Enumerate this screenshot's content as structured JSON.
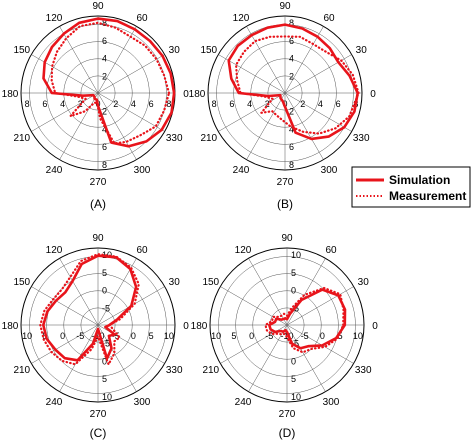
{
  "legend": {
    "simulation": "Simulation",
    "measurement": "Measurement"
  },
  "colors": {
    "series": "#e8141b",
    "grid": "#555555"
  },
  "chart_data": [
    {
      "type": "polar",
      "panel_label": "(A)",
      "angle_labels": [
        "0",
        "30",
        "60",
        "90",
        "120",
        "150",
        "180",
        "210",
        "240",
        "270",
        "300",
        "330"
      ],
      "radial_ticks": [
        "8",
        "6",
        "4",
        "2",
        "0",
        "2",
        "4",
        "6",
        "8"
      ],
      "radial_ticks_vertical": [
        "8",
        "6",
        "4",
        "2",
        "2",
        "4",
        "6",
        "8"
      ],
      "rlim": [
        0,
        9
      ],
      "grid": true,
      "series": [
        {
          "name": "Simulation",
          "style": "solid",
          "points": [
            [
              0,
              8.9
            ],
            [
              15,
              8.8
            ],
            [
              30,
              8.7
            ],
            [
              45,
              8.6
            ],
            [
              60,
              8.6
            ],
            [
              75,
              8.7
            ],
            [
              90,
              8.7
            ],
            [
              105,
              8.5
            ],
            [
              120,
              8.0
            ],
            [
              135,
              7.6
            ],
            [
              150,
              7.2
            ],
            [
              165,
              6.6
            ],
            [
              180,
              5.4
            ],
            [
              190,
              1.8
            ],
            [
              205,
              0.6
            ],
            [
              225,
              0.6
            ],
            [
              240,
              0.8
            ],
            [
              260,
              0.8
            ],
            [
              270,
              1.5
            ],
            [
              285,
              6.0
            ],
            [
              300,
              7.2
            ],
            [
              315,
              8.0
            ],
            [
              330,
              8.6
            ],
            [
              345,
              8.9
            ],
            [
              360,
              8.9
            ]
          ]
        },
        {
          "name": "Measurement",
          "style": "dotted",
          "points": [
            [
              0,
              8.3
            ],
            [
              15,
              8.0
            ],
            [
              30,
              7.9
            ],
            [
              45,
              7.8
            ],
            [
              60,
              7.6
            ],
            [
              75,
              7.9
            ],
            [
              90,
              8.2
            ],
            [
              105,
              8.1
            ],
            [
              120,
              7.4
            ],
            [
              135,
              6.8
            ],
            [
              150,
              6.2
            ],
            [
              165,
              5.6
            ],
            [
              180,
              5.0
            ],
            [
              190,
              2.4
            ],
            [
              205,
              1.6
            ],
            [
              220,
              4.2
            ],
            [
              235,
              2.6
            ],
            [
              250,
              1.2
            ],
            [
              265,
              1.2
            ],
            [
              275,
              3.0
            ],
            [
              288,
              6.2
            ],
            [
              300,
              6.6
            ],
            [
              315,
              7.0
            ],
            [
              330,
              7.8
            ],
            [
              345,
              8.0
            ],
            [
              360,
              8.3
            ]
          ]
        }
      ]
    },
    {
      "type": "polar",
      "panel_label": "(B)",
      "angle_labels": [
        "0",
        "30",
        "60",
        "90",
        "120",
        "150",
        "180",
        "210",
        "240",
        "270",
        "300",
        "330"
      ],
      "radial_ticks": [
        "8",
        "6",
        "4",
        "2",
        "0",
        "2",
        "4",
        "6",
        "8"
      ],
      "radial_ticks_vertical": [
        "8",
        "6",
        "4",
        "2",
        "2",
        "4",
        "6",
        "8"
      ],
      "rlim": [
        0,
        9
      ],
      "grid": true,
      "series": [
        {
          "name": "Simulation",
          "style": "solid",
          "points": [
            [
              0,
              8.5
            ],
            [
              15,
              7.8
            ],
            [
              30,
              7.2
            ],
            [
              45,
              7.4
            ],
            [
              60,
              7.6
            ],
            [
              75,
              7.8
            ],
            [
              90,
              8.0
            ],
            [
              105,
              7.9
            ],
            [
              120,
              7.8
            ],
            [
              135,
              7.8
            ],
            [
              150,
              7.6
            ],
            [
              165,
              6.5
            ],
            [
              180,
              5.4
            ],
            [
              190,
              2.0
            ],
            [
              205,
              0.6
            ],
            [
              230,
              0.8
            ],
            [
              255,
              1.0
            ],
            [
              270,
              1.6
            ],
            [
              285,
              4.8
            ],
            [
              300,
              6.2
            ],
            [
              315,
              7.2
            ],
            [
              330,
              8.0
            ],
            [
              345,
              8.4
            ],
            [
              360,
              8.5
            ]
          ]
        },
        {
          "name": "Measurement",
          "style": "dotted",
          "points": [
            [
              0,
              8.6
            ],
            [
              15,
              8.2
            ],
            [
              30,
              7.6
            ],
            [
              45,
              6.8
            ],
            [
              60,
              6.6
            ],
            [
              75,
              6.8
            ],
            [
              90,
              6.6
            ],
            [
              105,
              6.8
            ],
            [
              120,
              7.0
            ],
            [
              135,
              6.8
            ],
            [
              150,
              6.6
            ],
            [
              165,
              5.8
            ],
            [
              180,
              5.2
            ],
            [
              190,
              2.4
            ],
            [
              205,
              1.6
            ],
            [
              220,
              3.6
            ],
            [
              235,
              2.6
            ],
            [
              250,
              2.8
            ],
            [
              265,
              3.2
            ],
            [
              280,
              4.0
            ],
            [
              295,
              5.0
            ],
            [
              310,
              6.2
            ],
            [
              325,
              7.2
            ],
            [
              340,
              8.0
            ],
            [
              360,
              8.6
            ]
          ]
        }
      ]
    },
    {
      "type": "polar",
      "panel_label": "(C)",
      "angle_labels": [
        "0",
        "30",
        "60",
        "90",
        "120",
        "150",
        "180",
        "210",
        "240",
        "270",
        "300",
        "330"
      ],
      "radial_ticks": [
        "10",
        "5",
        "0",
        "-5",
        "-10",
        "-5",
        "0",
        "5",
        "10"
      ],
      "radial_ticks_vertical": [
        "10",
        "5",
        "0",
        "-5",
        "-5",
        "0",
        "5",
        "10"
      ],
      "rlim": [
        -10,
        10
      ],
      "grid": true,
      "series": [
        {
          "name": "Simulation",
          "style": "solid",
          "points": [
            [
              0,
              -7
            ],
            [
              15,
              -5
            ],
            [
              30,
              0
            ],
            [
              45,
              4
            ],
            [
              60,
              6.8
            ],
            [
              75,
              8.2
            ],
            [
              90,
              8.0
            ],
            [
              105,
              6.4
            ],
            [
              120,
              3.2
            ],
            [
              135,
              2.0
            ],
            [
              150,
              2.6
            ],
            [
              165,
              3.6
            ],
            [
              180,
              4.2
            ],
            [
              195,
              3.8
            ],
            [
              210,
              2.8
            ],
            [
              225,
              2.2
            ],
            [
              240,
              0.6
            ],
            [
              255,
              -5
            ],
            [
              270,
              -9
            ],
            [
              285,
              -1
            ],
            [
              300,
              -3
            ],
            [
              315,
              -6
            ],
            [
              330,
              -5
            ],
            [
              345,
              -8
            ],
            [
              360,
              -7
            ]
          ]
        },
        {
          "name": "Measurement",
          "style": "dotted",
          "points": [
            [
              0,
              -7
            ],
            [
              15,
              -4
            ],
            [
              30,
              1
            ],
            [
              45,
              5
            ],
            [
              60,
              7.2
            ],
            [
              75,
              8.4
            ],
            [
              90,
              8.4
            ],
            [
              105,
              7.2
            ],
            [
              120,
              4.4
            ],
            [
              135,
              3.2
            ],
            [
              150,
              3.4
            ],
            [
              165,
              4.4
            ],
            [
              180,
              5.0
            ],
            [
              195,
              4.6
            ],
            [
              210,
              4.0
            ],
            [
              225,
              3.2
            ],
            [
              240,
              1.8
            ],
            [
              255,
              -3.5
            ],
            [
              270,
              -7
            ],
            [
              285,
              0.6
            ],
            [
              300,
              -1.5
            ],
            [
              315,
              -4
            ],
            [
              330,
              -3.5
            ],
            [
              345,
              -6
            ],
            [
              360,
              -7
            ]
          ]
        }
      ]
    },
    {
      "type": "polar",
      "panel_label": "(D)",
      "angle_labels": [
        "0",
        "30",
        "60",
        "90",
        "120",
        "150",
        "180",
        "210",
        "240",
        "270",
        "300",
        "330"
      ],
      "radial_ticks": [
        "10",
        "5",
        "0",
        "-5",
        "-10",
        "-5",
        "0",
        "5",
        "10"
      ],
      "radial_ticks_vertical": [
        "10",
        "5",
        "0",
        "-5",
        "-5",
        "0",
        "5",
        "10"
      ],
      "rlim": [
        -10,
        10
      ],
      "grid": true,
      "series": [
        {
          "name": "Simulation",
          "style": "solid",
          "points": [
            [
              0,
              5.0
            ],
            [
              15,
              5.6
            ],
            [
              30,
              5.4
            ],
            [
              45,
              3.0
            ],
            [
              60,
              -2.5
            ],
            [
              75,
              -7
            ],
            [
              90,
              -8.5
            ],
            [
              105,
              -8.2
            ],
            [
              120,
              -8.2
            ],
            [
              135,
              -8
            ],
            [
              150,
              -6.8
            ],
            [
              165,
              -6.8
            ],
            [
              180,
              -5.4
            ],
            [
              195,
              -5.6
            ],
            [
              210,
              -6.4
            ],
            [
              225,
              -7.8
            ],
            [
              240,
              -8
            ],
            [
              255,
              -8.6
            ],
            [
              270,
              -8.2
            ],
            [
              285,
              -5
            ],
            [
              300,
              -3
            ],
            [
              315,
              -2.2
            ],
            [
              330,
              0.6
            ],
            [
              345,
              3.2
            ],
            [
              360,
              5.0
            ]
          ]
        },
        {
          "name": "Measurement",
          "style": "dotted",
          "points": [
            [
              0,
              4.6
            ],
            [
              15,
              5.2
            ],
            [
              30,
              6.0
            ],
            [
              45,
              3.6
            ],
            [
              60,
              -1.0
            ],
            [
              75,
              -5.5
            ],
            [
              90,
              -7.6
            ],
            [
              105,
              -7.0
            ],
            [
              120,
              -7.2
            ],
            [
              135,
              -7.0
            ],
            [
              150,
              -5.8
            ],
            [
              165,
              -6.0
            ],
            [
              180,
              -4.4
            ],
            [
              195,
              -4.6
            ],
            [
              210,
              -5.4
            ],
            [
              225,
              -6.8
            ],
            [
              240,
              -7.2
            ],
            [
              255,
              -7.6
            ],
            [
              270,
              -6.8
            ],
            [
              285,
              -3.8
            ],
            [
              300,
              -1.8
            ],
            [
              315,
              -1.2
            ],
            [
              330,
              1.4
            ],
            [
              345,
              3.6
            ],
            [
              360,
              4.6
            ]
          ]
        }
      ]
    }
  ]
}
